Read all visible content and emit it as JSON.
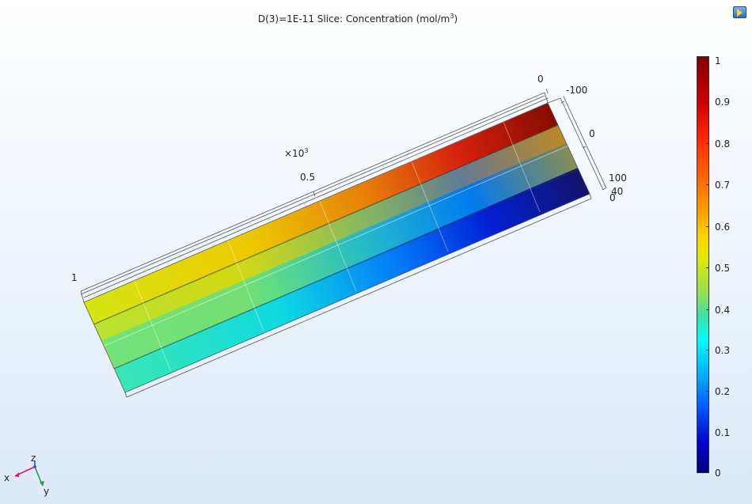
{
  "title": {
    "prefix": "D(3)=1E-11   Slice: Concentration (mol/m",
    "exponent": "3",
    "suffix": ")"
  },
  "colors": {
    "high": "#800000",
    "mid": "#00ffff",
    "low": "#000080"
  },
  "axes": {
    "length_multiplier_base": "×10",
    "length_multiplier_exp": "3",
    "length_ticks": [
      "0",
      "0.5",
      "1"
    ],
    "width_ticks": [
      "-100",
      "0",
      "100"
    ],
    "height_ticks": [
      "40",
      "0"
    ]
  },
  "colorbar": {
    "labels": [
      "1",
      "0.9",
      "0.8",
      "0.7",
      "0.6",
      "0.5",
      "0.4",
      "0.3",
      "0.2",
      "0.1",
      "0"
    ]
  },
  "triad": {
    "x": "x",
    "y": "y",
    "z": "z"
  }
}
